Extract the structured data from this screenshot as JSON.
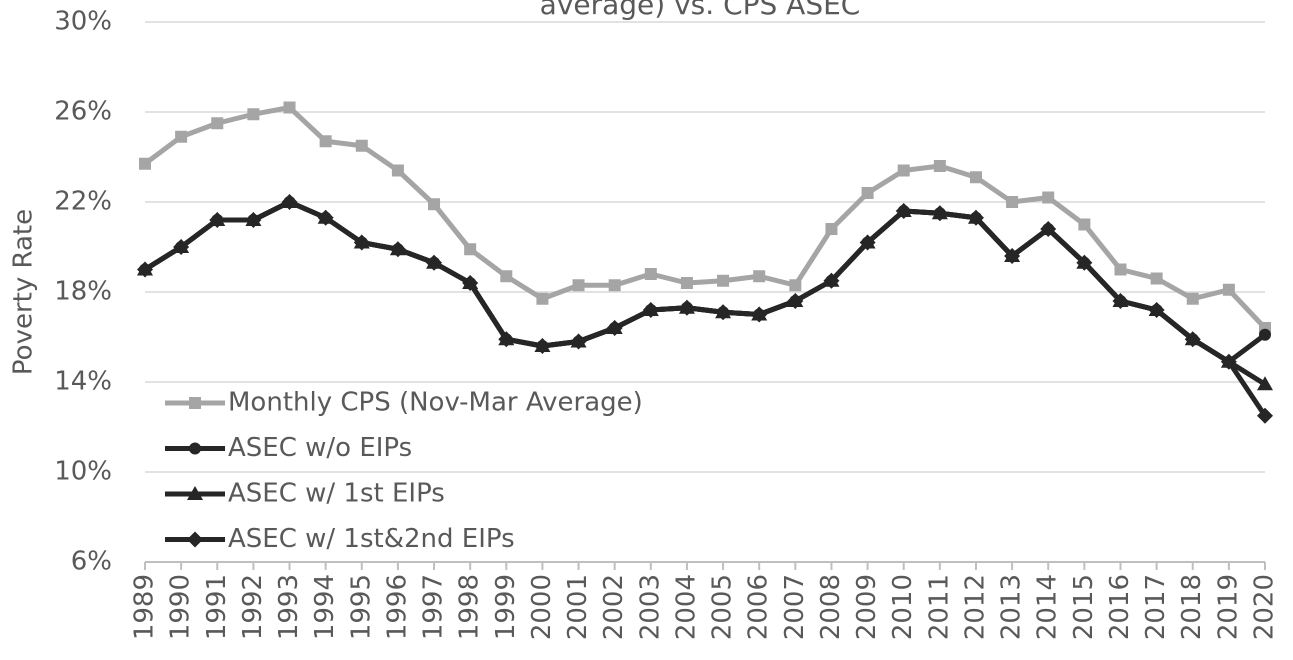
{
  "chart_data": {
    "type": "line",
    "title": "average) vs. CPS ASEC",
    "y_label": "Poverty Rate",
    "categories": [
      "1989",
      "1990",
      "1991",
      "1992",
      "1993",
      "1994",
      "1995",
      "1996",
      "1997",
      "1998",
      "1999",
      "2000",
      "2001",
      "2002",
      "2003",
      "2004",
      "2005",
      "2006",
      "2007",
      "2008",
      "2009",
      "2010",
      "2011",
      "2012",
      "2013",
      "2014",
      "2015",
      "2016",
      "2017",
      "2018",
      "2019",
      "2020"
    ],
    "ylim": [
      6,
      30
    ],
    "yticks": [
      {
        "value": 6,
        "label": "6%"
      },
      {
        "value": 10,
        "label": "10%"
      },
      {
        "value": 14,
        "label": "14%"
      },
      {
        "value": 18,
        "label": "18%"
      },
      {
        "value": 22,
        "label": "22%"
      },
      {
        "value": 26,
        "label": "26%"
      },
      {
        "value": 30,
        "label": "30%"
      }
    ],
    "grid": true,
    "legend": "lower left",
    "series": [
      {
        "name": "Monthly CPS (Nov-Mar Average)",
        "color": "#a5a5a5",
        "marker": "square",
        "values": [
          23.7,
          24.9,
          25.5,
          25.9,
          26.2,
          24.7,
          24.5,
          23.4,
          21.9,
          19.9,
          18.7,
          17.7,
          18.3,
          18.3,
          18.8,
          18.4,
          18.5,
          18.7,
          18.3,
          20.8,
          22.4,
          23.4,
          23.6,
          23.1,
          22.0,
          22.2,
          21.0,
          19.0,
          18.6,
          17.7,
          18.1,
          16.4
        ]
      },
      {
        "name": "ASEC w/o EIPs",
        "color": "#262626",
        "marker": "circle",
        "values": [
          19.0,
          20.0,
          21.2,
          21.2,
          22.0,
          21.3,
          20.2,
          19.9,
          19.3,
          18.4,
          15.9,
          15.6,
          15.8,
          16.4,
          17.2,
          17.3,
          17.1,
          17.0,
          17.6,
          18.5,
          20.2,
          21.6,
          21.5,
          21.3,
          19.6,
          20.8,
          19.3,
          17.6,
          17.2,
          15.9,
          14.9,
          16.1
        ]
      },
      {
        "name": "ASEC w/ 1st EIPs",
        "color": "#262626",
        "marker": "triangle",
        "values": [
          19.0,
          20.0,
          21.2,
          21.2,
          22.0,
          21.3,
          20.2,
          19.9,
          19.3,
          18.4,
          15.9,
          15.6,
          15.8,
          16.4,
          17.2,
          17.3,
          17.1,
          17.0,
          17.6,
          18.5,
          20.2,
          21.6,
          21.5,
          21.3,
          19.6,
          20.8,
          19.3,
          17.6,
          17.2,
          15.9,
          14.9,
          13.9
        ]
      },
      {
        "name": "ASEC w/ 1st&2nd EIPs",
        "color": "#262626",
        "marker": "diamond",
        "values": [
          19.0,
          20.0,
          21.2,
          21.2,
          22.0,
          21.3,
          20.2,
          19.9,
          19.3,
          18.4,
          15.9,
          15.6,
          15.8,
          16.4,
          17.2,
          17.3,
          17.1,
          17.0,
          17.6,
          18.5,
          20.2,
          21.6,
          21.5,
          21.3,
          19.6,
          20.8,
          19.3,
          17.6,
          17.2,
          15.9,
          14.9,
          12.5
        ]
      }
    ]
  }
}
